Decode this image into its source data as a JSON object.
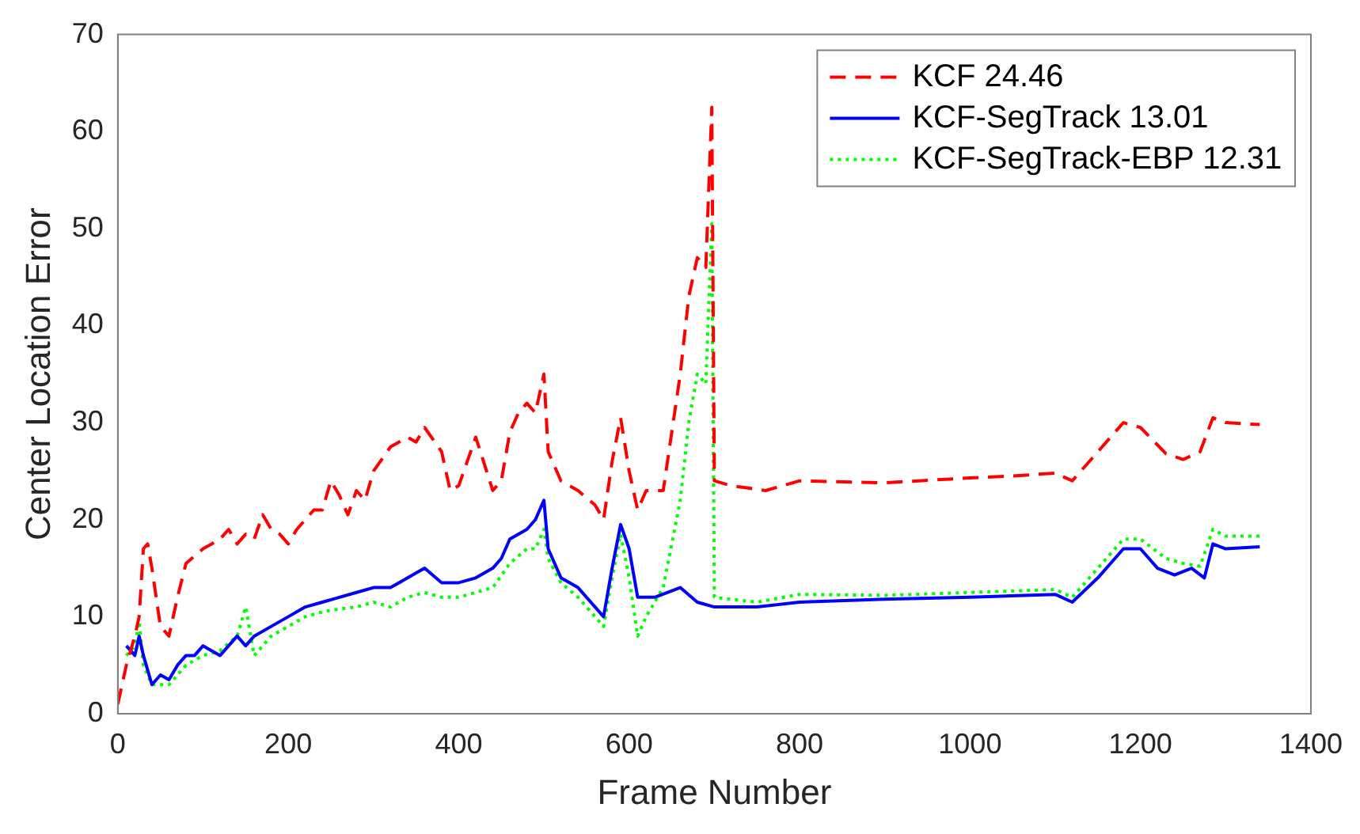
{
  "chart_data": {
    "type": "line",
    "xlabel": "Frame Number",
    "ylabel": "Center Location Error",
    "xlim": [
      0,
      1400
    ],
    "xticks": [
      0,
      200,
      400,
      600,
      800,
      1000,
      1200,
      1400
    ],
    "ylim": [
      0,
      70
    ],
    "yticks": [
      0,
      10,
      20,
      30,
      40,
      50,
      60,
      70
    ],
    "grid": false,
    "legend": "top right",
    "marker": "none",
    "series": [
      {
        "name": "KCF 24.46",
        "color": "#ff0000",
        "line_style": "dashed",
        "x": [
          0,
          10,
          20,
          25,
          30,
          35,
          40,
          50,
          60,
          70,
          80,
          100,
          110,
          120,
          130,
          140,
          150,
          160,
          170,
          180,
          190,
          200,
          210,
          220,
          230,
          240,
          250,
          260,
          270,
          280,
          290,
          300,
          320,
          340,
          350,
          360,
          380,
          390,
          400,
          410,
          420,
          440,
          450,
          460,
          470,
          480,
          490,
          500,
          505,
          520,
          540,
          560,
          570,
          580,
          590,
          600,
          610,
          620,
          640,
          660,
          670,
          680,
          690,
          697,
          700,
          720,
          760,
          800,
          900,
          1000,
          1050,
          1100,
          1120,
          1150,
          1180,
          1200,
          1230,
          1250,
          1270,
          1285,
          1300,
          1340
        ],
        "values": [
          1,
          5,
          8,
          10,
          17,
          17.5,
          15,
          9,
          8,
          12,
          15.5,
          17,
          17.5,
          18,
          19,
          17.5,
          18.5,
          18,
          20.5,
          19,
          18.5,
          17.5,
          19,
          20,
          21,
          21,
          24,
          22.5,
          20.5,
          23,
          22,
          25,
          27.5,
          28.5,
          28,
          29.5,
          27,
          23,
          23.5,
          26,
          28.5,
          23,
          24,
          29,
          31,
          32,
          31,
          35,
          27,
          24,
          23,
          21.5,
          20,
          26,
          30.5,
          25,
          21,
          23,
          23,
          35,
          43,
          47,
          46,
          62.5,
          24,
          23.5,
          23,
          24,
          23.8,
          24.3,
          24.5,
          24.8,
          24,
          27,
          30,
          29.5,
          26.8,
          26.2,
          27,
          30.5,
          30,
          29.8
        ]
      },
      {
        "name": "KCF-SegTrack 13.01",
        "color": "#0000ff",
        "line_style": "solid",
        "x": [
          10,
          20,
          25,
          30,
          40,
          50,
          60,
          70,
          80,
          90,
          100,
          120,
          140,
          150,
          160,
          180,
          200,
          220,
          240,
          260,
          280,
          300,
          320,
          340,
          360,
          380,
          400,
          420,
          440,
          450,
          460,
          480,
          490,
          500,
          505,
          520,
          540,
          560,
          570,
          580,
          590,
          600,
          610,
          630,
          660,
          680,
          700,
          750,
          800,
          900,
          1000,
          1100,
          1120,
          1150,
          1180,
          1200,
          1220,
          1240,
          1260,
          1275,
          1285,
          1300,
          1340
        ],
        "values": [
          7,
          6,
          8,
          6,
          3,
          4,
          3.5,
          5,
          6,
          6,
          7,
          6,
          8,
          7,
          8,
          9,
          10,
          11,
          11.5,
          12,
          12.5,
          13,
          13,
          14,
          15,
          13.5,
          13.5,
          14,
          15,
          16,
          18,
          19,
          20,
          22,
          17,
          14,
          13,
          11,
          10,
          15,
          19.5,
          17,
          12,
          12,
          13,
          11.5,
          11,
          11,
          11.5,
          11.8,
          12,
          12.3,
          11.5,
          14,
          17,
          17,
          15,
          14.3,
          15,
          14,
          17.5,
          17,
          17.2
        ]
      },
      {
        "name": "KCF-SegTrack-EBP 12.31",
        "color": "#00ff00",
        "line_style": "dotted",
        "x": [
          10,
          20,
          25,
          30,
          40,
          60,
          80,
          100,
          120,
          140,
          150,
          160,
          180,
          200,
          220,
          240,
          260,
          280,
          300,
          320,
          340,
          360,
          380,
          400,
          420,
          440,
          460,
          480,
          490,
          500,
          505,
          520,
          540,
          560,
          570,
          580,
          590,
          600,
          610,
          620,
          640,
          660,
          670,
          680,
          690,
          697,
          700,
          750,
          800,
          900,
          1000,
          1100,
          1120,
          1150,
          1180,
          1200,
          1230,
          1250,
          1270,
          1285,
          1300,
          1340
        ],
        "values": [
          6,
          7,
          9.5,
          5,
          3,
          3,
          5,
          6,
          6.5,
          8,
          11,
          6,
          8,
          9,
          10,
          10.5,
          10.8,
          11,
          11.5,
          11,
          12,
          12.5,
          12,
          12,
          12.5,
          13,
          15.5,
          17,
          17,
          19,
          16,
          13.5,
          12,
          10,
          9,
          14,
          18.5,
          14,
          8,
          10,
          13,
          22,
          30,
          35,
          34,
          50.5,
          12,
          11.5,
          12.3,
          12.2,
          12.5,
          12.8,
          12,
          15,
          18,
          18,
          16,
          15.5,
          15.2,
          19,
          18.3,
          18.3
        ]
      }
    ]
  }
}
